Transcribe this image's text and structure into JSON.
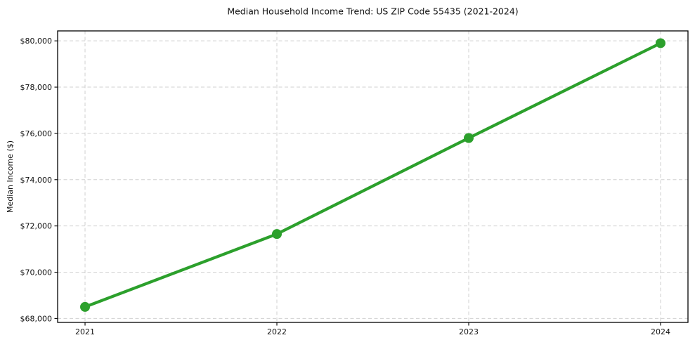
{
  "chart_data": {
    "type": "line",
    "title": "Median Household Income Trend: US ZIP Code 55435 (2021-2024)",
    "xlabel": "",
    "ylabel": "Median Income ($)",
    "categories": [
      "2021",
      "2022",
      "2023",
      "2024"
    ],
    "series": [
      {
        "name": "Median Household Income",
        "values": [
          68500,
          71650,
          75800,
          79900
        ]
      }
    ],
    "ylim": [
      67830,
      80430
    ],
    "yticks": [
      68000,
      70000,
      72000,
      74000,
      76000,
      78000,
      80000
    ],
    "ytick_labels": [
      "$68,000",
      "$70,000",
      "$72,000",
      "$74,000",
      "$76,000",
      "$78,000",
      "$80,000"
    ],
    "grid": true,
    "grid_style": "dashed",
    "legend": false,
    "marker": "circle",
    "line_color": "#2ca02c",
    "grid_color": "#d0d0d0",
    "background_color": "#ffffff",
    "text_color": "#111111"
  }
}
